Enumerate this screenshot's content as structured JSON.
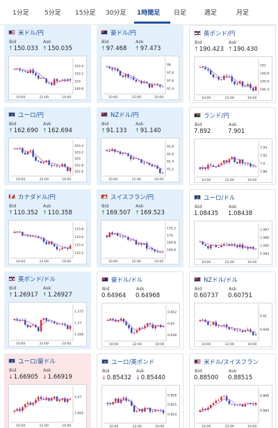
{
  "tabs": [
    {
      "label": "1分足",
      "active": false
    },
    {
      "label": "5分足",
      "active": false
    },
    {
      "label": "15分足",
      "active": false
    },
    {
      "label": "30分足",
      "active": false
    },
    {
      "label": "1時間足",
      "active": true
    },
    {
      "label": "日足",
      "active": false
    },
    {
      "label": "週足",
      "active": false
    },
    {
      "label": "月足",
      "active": false
    }
  ],
  "colors": {
    "accent": "#1a4fa0",
    "up_bg": "#e3f0fb",
    "down_bg": "#fbe5e6",
    "candle_up": "#d22c2c",
    "candle_down": "#2b4bb5",
    "ma": "#c64fc4"
  },
  "labels": {
    "bid": "Bid",
    "ask": "Ask"
  },
  "cards": [
    {
      "name": "米ドル/円",
      "flag": "us",
      "state": "up",
      "direction": "up",
      "bid": "150.033",
      "ask": "150.035",
      "chart_data": {
        "type": "candlestick",
        "x_ticks": [
          "10:00",
          "22:00",
          "10:00"
        ],
        "y_ticks": [
          "150.4",
          "150.2",
          "150",
          "149.8"
        ],
        "ylim": [
          149.7,
          150.55
        ],
        "trend": [
          150.32,
          150.36,
          150.28,
          150.22,
          150.3,
          150.24,
          150.1,
          150.06,
          149.95,
          149.9,
          150.02,
          149.98,
          150.05,
          150.0,
          150.03
        ]
      }
    },
    {
      "name": "豪ドル/円",
      "flag": "au",
      "state": "up",
      "direction": "up",
      "bid": "97.468",
      "ask": "97.473",
      "chart_data": {
        "type": "candlestick",
        "x_ticks": [
          "10:00",
          "22:00",
          "10:00"
        ],
        "y_ticks": [
          "98",
          "97.8",
          "97.6",
          "97.4"
        ],
        "ylim": [
          97.3,
          98.1
        ],
        "trend": [
          97.95,
          97.92,
          97.85,
          97.8,
          97.72,
          97.75,
          97.68,
          97.6,
          97.55,
          97.58,
          97.5,
          97.45,
          97.52,
          97.48,
          97.47
        ]
      }
    },
    {
      "name": "英ポンド/円",
      "flag": "gb",
      "state": "neutral",
      "direction": "up",
      "bid": "190.423",
      "ask": "190.430",
      "chart_data": {
        "type": "candlestick",
        "x_ticks": [
          "10:00",
          "22:00",
          "10:00"
        ],
        "y_ticks": [
          "191",
          "190.8",
          "190.6",
          "190.4"
        ],
        "ylim": [
          190.3,
          191.1
        ],
        "trend": [
          190.95,
          191.0,
          190.85,
          190.7,
          190.75,
          190.62,
          190.7,
          190.78,
          190.6,
          190.5,
          190.55,
          190.45,
          190.5,
          190.4,
          190.42
        ]
      }
    },
    {
      "name": "ユーロ/円",
      "flag": "eu",
      "state": "up",
      "direction": "up",
      "bid": "162.690",
      "ask": "162.694",
      "chart_data": {
        "type": "candlestick",
        "x_ticks": [
          "10:00",
          "22:00",
          "10:00"
        ],
        "y_ticks": [
          "163.4",
          "163.2",
          "163",
          "162.8",
          "162.6"
        ],
        "ylim": [
          162.5,
          163.5
        ],
        "trend": [
          163.3,
          163.32,
          163.2,
          163.15,
          163.22,
          163.0,
          162.95,
          162.85,
          162.9,
          162.8,
          162.85,
          162.75,
          162.78,
          162.65,
          162.69
        ]
      }
    },
    {
      "name": "NZドル/円",
      "flag": "nz",
      "state": "up",
      "direction": "up",
      "bid": "91.133",
      "ask": "91.140",
      "chart_data": {
        "type": "candlestick",
        "x_ticks": [
          "10:00",
          "22:00",
          "10:00"
        ],
        "y_ticks": [
          "91.8",
          "91.6",
          "91.4",
          "91.2"
        ],
        "ylim": [
          91.05,
          91.9
        ],
        "trend": [
          91.7,
          91.72,
          91.65,
          91.6,
          91.66,
          91.55,
          91.5,
          91.45,
          91.42,
          91.38,
          91.35,
          91.3,
          91.28,
          91.15,
          91.13
        ]
      }
    },
    {
      "name": "ランド/円",
      "flag": "za",
      "state": "neutral",
      "direction": "none",
      "bid": "7.892",
      "ask": "7.901",
      "chart_data": {
        "type": "candlestick",
        "x_ticks": [
          "10:00",
          "22:00",
          "10:00"
        ],
        "y_ticks": [
          "7.94",
          "7.92",
          "7.9",
          "7.88"
        ],
        "ylim": [
          7.87,
          7.95
        ],
        "trend": [
          7.89,
          7.888,
          7.892,
          7.895,
          7.89,
          7.893,
          7.91,
          7.905,
          7.92,
          7.9,
          7.91,
          7.895,
          7.9,
          7.892,
          7.892
        ]
      }
    },
    {
      "name": "カナダドル/円",
      "flag": "ca",
      "state": "up",
      "direction": "up",
      "bid": "110.352",
      "ask": "110.358",
      "chart_data": {
        "type": "candlestick",
        "x_ticks": [
          "10:00",
          "22:00",
          "10:00"
        ],
        "y_ticks": [
          "110.8",
          "110.6",
          "110.4",
          "110.2"
        ],
        "ylim": [
          110.1,
          110.9
        ],
        "trend": [
          110.7,
          110.72,
          110.65,
          110.6,
          110.66,
          110.55,
          110.6,
          110.5,
          110.45,
          110.48,
          110.4,
          110.3,
          110.35,
          110.32,
          110.35
        ]
      }
    },
    {
      "name": "スイスフラン/円",
      "flag": "ch",
      "state": "up",
      "direction": "up",
      "bid": "169.507",
      "ask": "169.523",
      "chart_data": {
        "type": "candlestick",
        "x_ticks": [
          "10:00",
          "22:00",
          "10:00"
        ],
        "y_ticks": [
          "170.2",
          "170",
          "169.8",
          "169.6"
        ],
        "ylim": [
          169.4,
          170.3
        ],
        "trend": [
          170.0,
          170.05,
          170.1,
          170.0,
          169.92,
          169.95,
          169.85,
          169.8,
          169.75,
          169.78,
          169.65,
          169.6,
          169.55,
          169.5,
          169.51
        ]
      }
    },
    {
      "name": "ユーロ/ドル",
      "flag": "eu",
      "state": "neutral",
      "direction": "none",
      "bid": "1.08435",
      "ask": "1.08438",
      "chart_data": {
        "type": "candlestick",
        "x_ticks": [
          "10:00",
          "22:00",
          "10:00"
        ],
        "y_ticks": [
          "1.087",
          "1.086",
          "1.085",
          "1.084"
        ],
        "ylim": [
          1.0835,
          1.0875
        ],
        "trend": [
          1.0855,
          1.0852,
          1.0848,
          1.0853,
          1.085,
          1.0847,
          1.0852,
          1.0849,
          1.0851,
          1.0848,
          1.085,
          1.0846,
          1.0848,
          1.0845,
          1.08435
        ]
      }
    },
    {
      "name": "英ポンド/ドル",
      "flag": "gb",
      "state": "up",
      "direction": "up",
      "bid": "1.26917",
      "ask": "1.26927",
      "chart_data": {
        "type": "candlestick",
        "x_ticks": [
          "10:00",
          "22:00",
          "10:00"
        ],
        "y_ticks": [
          "1.272",
          "1.27",
          "1.268"
        ],
        "ylim": [
          1.2672,
          1.2728
        ],
        "trend": [
          1.2705,
          1.2702,
          1.2708,
          1.2695,
          1.2698,
          1.2692,
          1.2688,
          1.2715,
          1.2705,
          1.2698,
          1.2702,
          1.2695,
          1.2698,
          1.2692,
          1.2692
        ]
      }
    },
    {
      "name": "豪ドル/ドル",
      "flag": "au",
      "state": "neutral",
      "direction": "none",
      "bid": "0.64964",
      "ask": "0.64968",
      "chart_data": {
        "type": "candlestick",
        "x_ticks": [
          "10:00",
          "22:00",
          "10:00"
        ],
        "y_ticks": [
          "0.652",
          "0.65",
          "0.648"
        ],
        "ylim": [
          0.6472,
          0.6528
        ],
        "trend": [
          0.6505,
          0.6508,
          0.6503,
          0.651,
          0.6502,
          0.6495,
          0.6485,
          0.6488,
          0.6492,
          0.6495,
          0.6498,
          0.6494,
          0.6497,
          0.6495,
          0.6496
        ]
      }
    },
    {
      "name": "NZドル/ドル",
      "flag": "nz",
      "state": "neutral",
      "direction": "none",
      "bid": "0.60737",
      "ask": "0.60751",
      "chart_data": {
        "type": "candlestick",
        "x_ticks": [
          "10:00",
          "22:00",
          "10:00"
        ],
        "y_ticks": [
          "0.61",
          "0.608"
        ],
        "ylim": [
          0.6065,
          0.6112
        ],
        "trend": [
          0.6092,
          0.6095,
          0.6088,
          0.609,
          0.6085,
          0.6082,
          0.6086,
          0.608,
          0.6083,
          0.6078,
          0.6081,
          0.6076,
          0.6079,
          0.6074,
          0.6074
        ]
      }
    },
    {
      "name": "ユーロ/豪ドル",
      "flag": "eu",
      "state": "down",
      "direction": "down",
      "bid": "1.66905",
      "ask": "1.66919",
      "chart_data": {
        "type": "candlestick",
        "x_ticks": [
          "10:00",
          "22:00",
          "10:00"
        ],
        "y_ticks": [
          "1.67",
          "1.665"
        ],
        "ylim": [
          1.6625,
          1.6725
        ],
        "trend": [
          1.6655,
          1.666,
          1.6665,
          1.6685,
          1.668,
          1.669,
          1.6695,
          1.6688,
          1.6698,
          1.6692,
          1.6696,
          1.669,
          1.6694,
          1.6688,
          1.669
        ]
      }
    },
    {
      "name": "ユーロ/英ポンド",
      "flag": "eu",
      "state": "neutral",
      "direction": "down",
      "bid": "0.85432",
      "ask": "0.85440",
      "chart_data": {
        "type": "candlestick",
        "x_ticks": [
          "10:00",
          "22:00",
          "10:00"
        ],
        "y_ticks": [
          "0.856",
          "0.855",
          "0.854"
        ],
        "ylim": [
          0.8532,
          0.8566
        ],
        "trend": [
          0.8552,
          0.855,
          0.8555,
          0.8553,
          0.8558,
          0.8554,
          0.8548,
          0.8542,
          0.8546,
          0.8544,
          0.8547,
          0.8543,
          0.8545,
          0.8543,
          0.8543
        ]
      }
    },
    {
      "name": "米ドル/スイスフラン",
      "flag": "us",
      "state": "neutral",
      "direction": "none",
      "bid": "0.88500",
      "ask": "0.88515",
      "chart_data": {
        "type": "candlestick",
        "x_ticks": [
          "10:00",
          "22:00",
          "10:00"
        ],
        "y_ticks": [
          "0.886",
          "0.884"
        ],
        "ylim": [
          0.8825,
          0.8868
        ],
        "trend": [
          0.8838,
          0.8842,
          0.8845,
          0.8848,
          0.8852,
          0.8856,
          0.8858,
          0.8852,
          0.8848,
          0.8845,
          0.885,
          0.8847,
          0.8852,
          0.8849,
          0.885
        ]
      }
    }
  ]
}
